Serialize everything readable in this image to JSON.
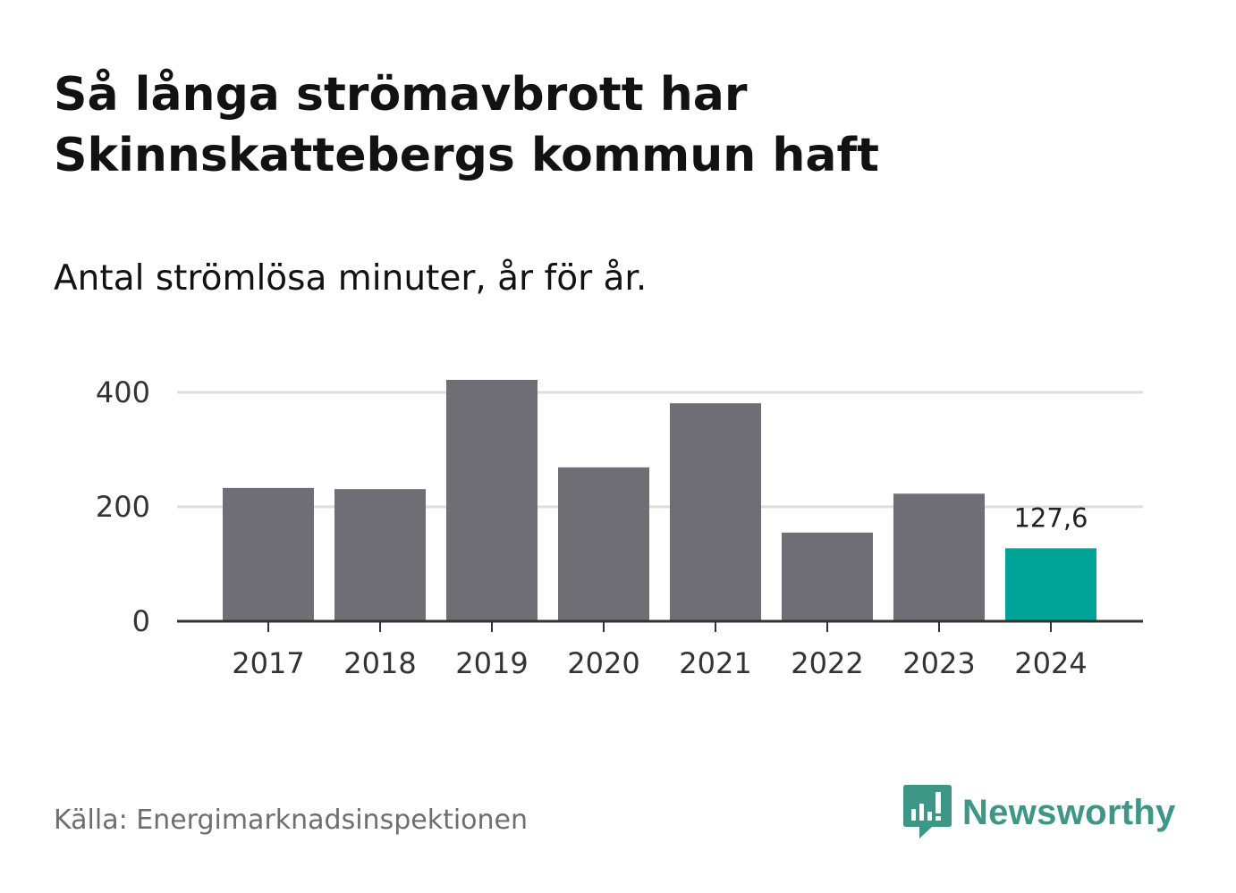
{
  "title": "Så långa strömavbrott har Skinnskattebergs kommun haft",
  "subtitle": "Antal strömlösa minuter, år för år.",
  "source": "Källa: Energimarknadsinspektionen",
  "brand": {
    "name": "Newsworthy",
    "icon": "newsworthy-logo-icon"
  },
  "colors": {
    "bar": "#6f6e74",
    "highlight": "#00a398",
    "grid": "#dddddd",
    "axis": "#333333",
    "brand": "#3e9686"
  },
  "chart_data": {
    "type": "bar",
    "title": "Så långa strömavbrott har Skinnskattebergs kommun haft",
    "subtitle": "Antal strömlösa minuter, år för år.",
    "xlabel": "",
    "ylabel": "",
    "categories": [
      "2017",
      "2018",
      "2019",
      "2020",
      "2021",
      "2022",
      "2023",
      "2024"
    ],
    "values": [
      233,
      231,
      422,
      269,
      381,
      155,
      223,
      127.6
    ],
    "ylim": [
      0,
      450
    ],
    "yticks": [
      0,
      200,
      400
    ],
    "ytick_labels": [
      "0",
      "200",
      "400"
    ],
    "grid": true,
    "highlight_index": 7,
    "data_labels": [
      {
        "index": 7,
        "text": "127,6"
      }
    ]
  }
}
